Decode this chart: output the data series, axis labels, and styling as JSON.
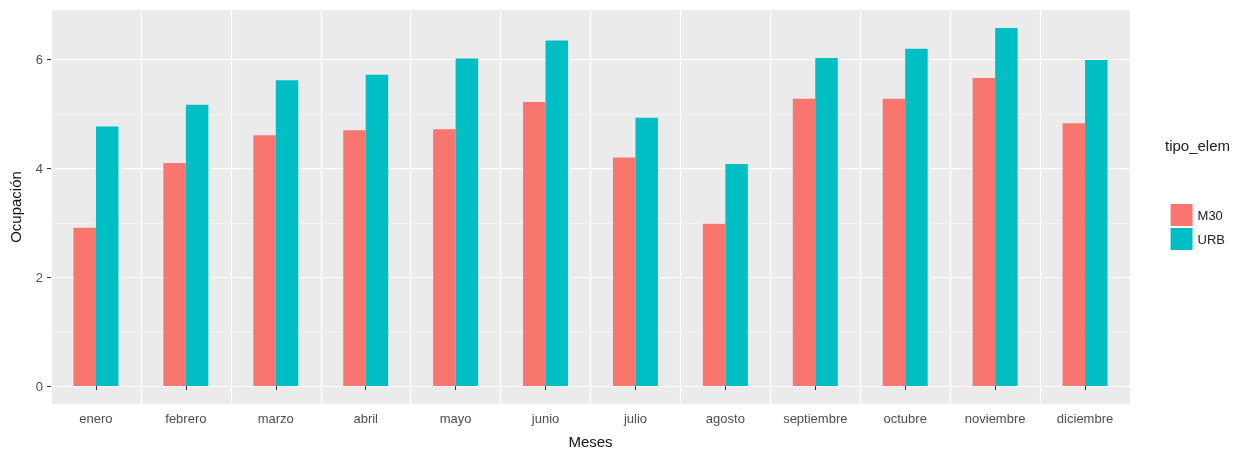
{
  "chart_data": {
    "type": "bar",
    "xlabel": "Meses",
    "ylabel": "Ocupación",
    "legend_title": "tipo_elem",
    "categories": [
      "enero",
      "febrero",
      "marzo",
      "abril",
      "mayo",
      "junio",
      "julio",
      "agosto",
      "septiembre",
      "octubre",
      "noviembre",
      "diciembre"
    ],
    "series": [
      {
        "name": "M30",
        "color": "#f8766d",
        "values": [
          2.91,
          4.1,
          4.61,
          4.7,
          4.72,
          5.22,
          4.2,
          2.98,
          5.28,
          5.28,
          5.66,
          4.83
        ]
      },
      {
        "name": "URB",
        "color": "#00bfc4",
        "values": [
          4.77,
          5.17,
          5.62,
          5.72,
          6.02,
          6.35,
          4.93,
          4.08,
          6.03,
          6.2,
          6.58,
          5.99
        ]
      }
    ],
    "ylim": [
      -0.33,
      6.91
    ],
    "yticks": [
      0,
      2,
      4,
      6
    ],
    "grid": true,
    "legend": "right"
  }
}
